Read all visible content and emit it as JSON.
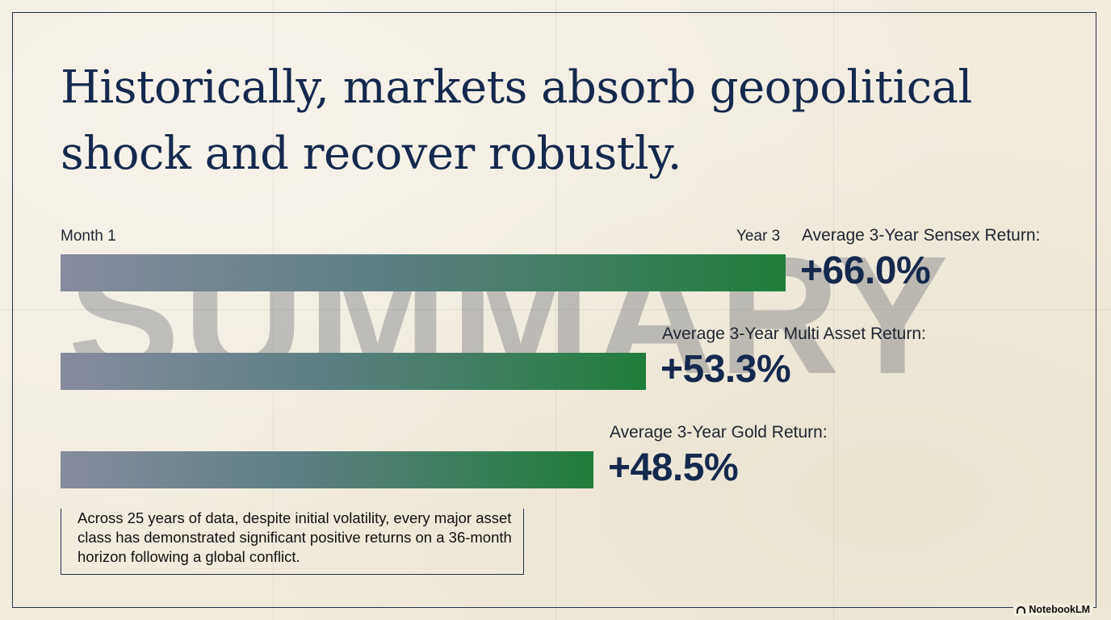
{
  "title": "Historically, markets absorb geopolitical shock and recover robustly.",
  "watermark": "SUMMARY",
  "chart_data": {
    "type": "bar",
    "orientation": "horizontal",
    "axis": {
      "start_label": "Month 1",
      "end_label": "Year 3"
    },
    "categories": [
      "Average 3-Year Sensex Return:",
      "Average 3-Year Multi Asset Return:",
      "Average 3-Year Gold Return:"
    ],
    "values": [
      66.0,
      53.3,
      48.5
    ],
    "value_labels": [
      "+66.0%",
      "+53.3%",
      "+48.5%"
    ],
    "unit": "%",
    "xlim": [
      0,
      66.0
    ]
  },
  "note": "Across 25 years of data, despite initial volatility, every major asset class has demonstrated significant positive returns on a 36-month horizon following a global conflict.",
  "brand": "NotebookLM",
  "colors": {
    "title": "#15294d",
    "bar_start": "#868b9e",
    "bar_end": "#1f7d3c",
    "frame": "#24324d"
  }
}
